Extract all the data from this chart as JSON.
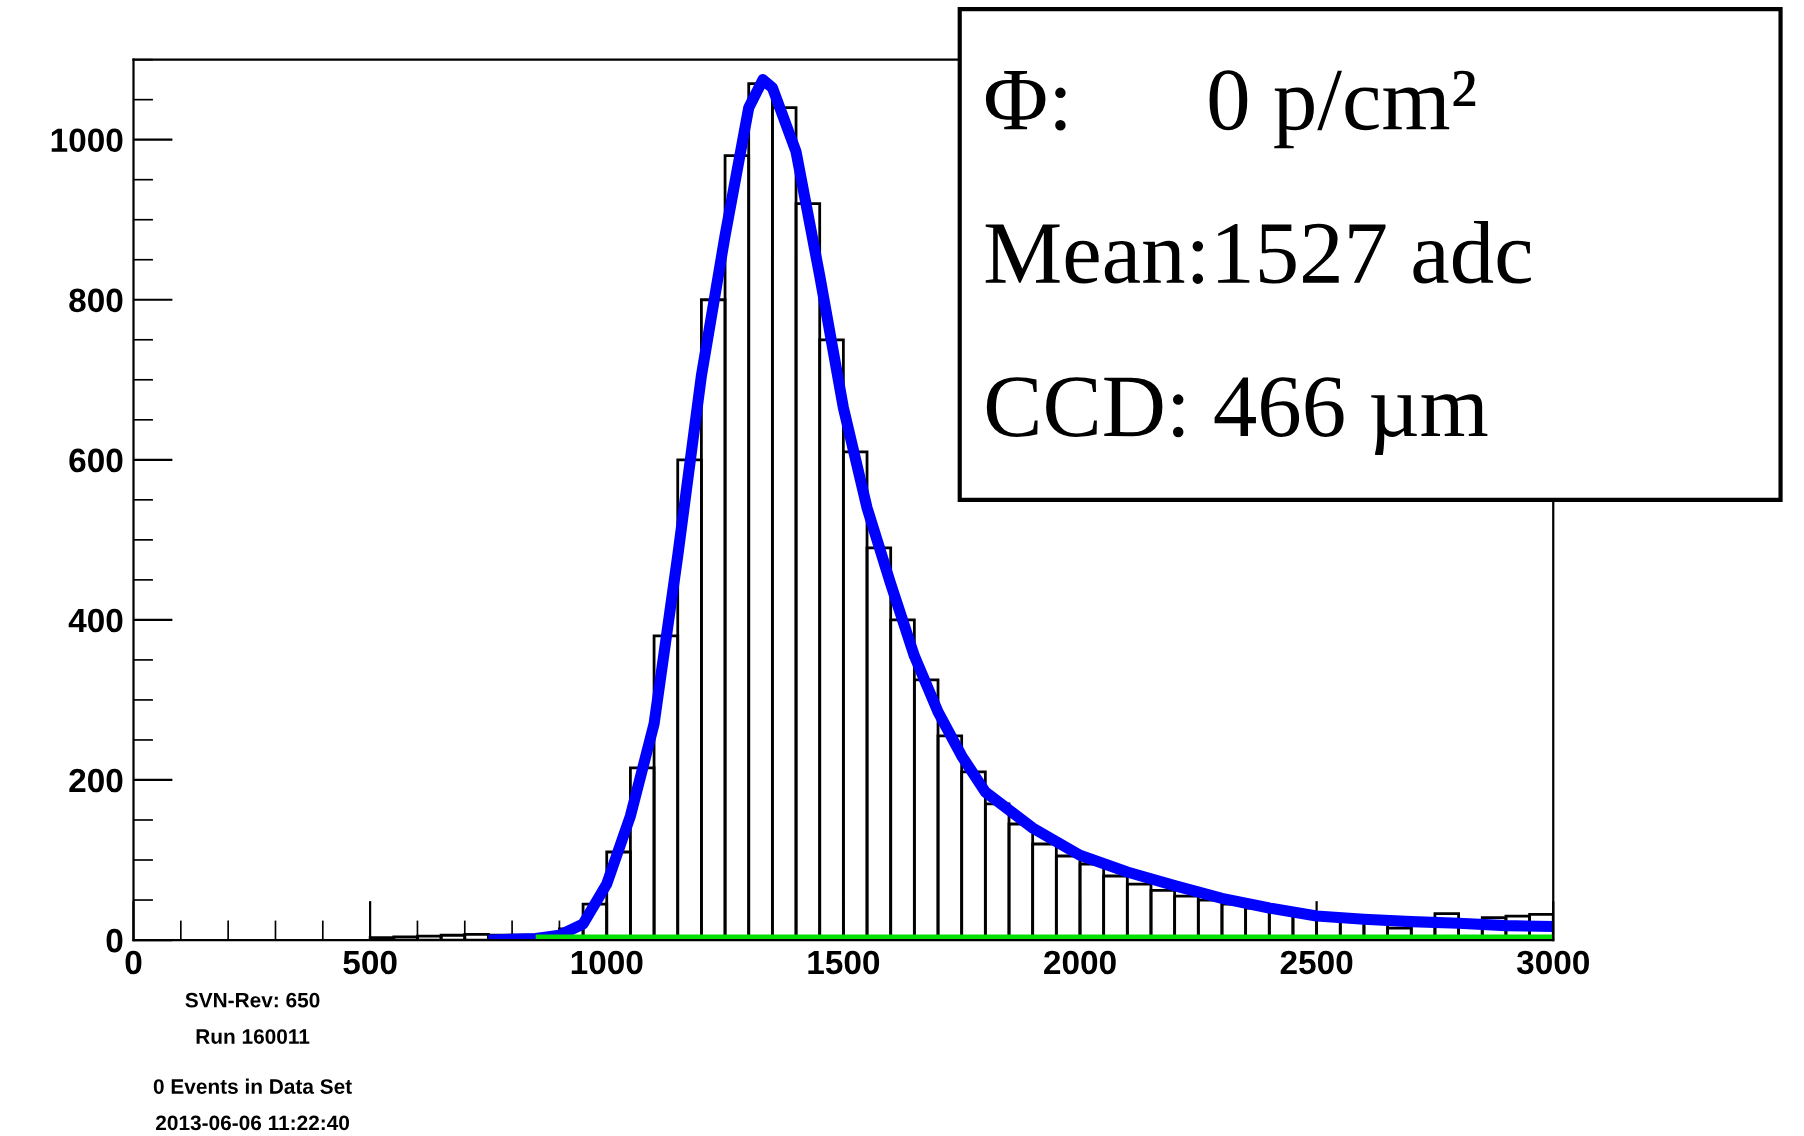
{
  "chart_data": {
    "type": "histogram",
    "bins": [
      500,
      550,
      600,
      650,
      700,
      750,
      800,
      850,
      900,
      950,
      1000,
      1050,
      1100,
      1150,
      1200,
      1250,
      1300,
      1350,
      1400,
      1450,
      1500,
      1550,
      1600,
      1650,
      1700,
      1750,
      1800,
      1850,
      1900,
      1950,
      2000,
      2050,
      2100,
      2150,
      2200,
      2250,
      2300,
      2350,
      2400,
      2450,
      2500,
      2550,
      2600,
      2650,
      2700,
      2750,
      2800,
      2850,
      2900,
      2950,
      3000
    ],
    "values": [
      3,
      4,
      5,
      6,
      7,
      6,
      6,
      null,
      14,
      45,
      110,
      215,
      380,
      600,
      800,
      980,
      1070,
      1040,
      920,
      750,
      610,
      490,
      400,
      325,
      255,
      210,
      170,
      145,
      120,
      105,
      95,
      80,
      70,
      62,
      55,
      50,
      45,
      40,
      38,
      34,
      32,
      30,
      28,
      15,
      25,
      33,
      24,
      28,
      30,
      32
    ],
    "color": "#000000",
    "series": [
      {
        "type": "line",
        "color": "#0000ff",
        "x": [
          750,
          850,
          900,
          950,
          1000,
          1050,
          1100,
          1150,
          1200,
          1250,
          1300,
          1330,
          1350,
          1400,
          1450,
          1500,
          1550,
          1600,
          1650,
          1700,
          1750,
          1800,
          1900,
          2000,
          2100,
          2200,
          2300,
          2400,
          2500,
          2600,
          2700,
          2800,
          2900,
          3000
        ],
        "values": [
          0,
          2,
          6,
          20,
          70,
          155,
          270,
          480,
          705,
          880,
          1040,
          1075,
          1065,
          985,
          830,
          665,
          540,
          445,
          355,
          285,
          230,
          185,
          140,
          106,
          85,
          68,
          52,
          40,
          30,
          26,
          23,
          21,
          18,
          17
        ]
      },
      {
        "type": "line",
        "color": "#00e000",
        "x": [
          850,
          3000
        ],
        "values": [
          0,
          0
        ]
      }
    ],
    "xlim": [
      0,
      3000
    ],
    "xticks": [
      0,
      500,
      1000,
      1500,
      2000,
      2500,
      3000
    ],
    "ylim": [
      0,
      1100
    ],
    "yticks": [
      0,
      200,
      400,
      600,
      800,
      1000
    ],
    "grid": false,
    "legend": false,
    "annotations": [
      "Φ:      0 p/cm²",
      "Mean:1527 adc",
      "CCD: 466 µm",
      "SVN-Rev: 650",
      "Run 160011",
      "0 Events in Data Set",
      "2013-06-06 11:22:40"
    ]
  }
}
